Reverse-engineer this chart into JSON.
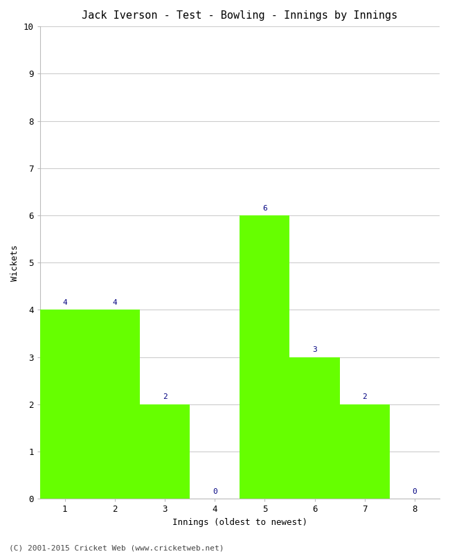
{
  "title": "Jack Iverson - Test - Bowling - Innings by Innings",
  "xlabel": "Innings (oldest to newest)",
  "ylabel": "Wickets",
  "categories": [
    1,
    2,
    3,
    4,
    5,
    6,
    7,
    8
  ],
  "values": [
    4,
    4,
    2,
    0,
    6,
    3,
    2,
    0
  ],
  "bar_color": "#66ff00",
  "label_color": "#000080",
  "ylim": [
    0,
    10
  ],
  "xlim": [
    0.5,
    8.5
  ],
  "yticks": [
    0,
    1,
    2,
    3,
    4,
    5,
    6,
    7,
    8,
    9,
    10
  ],
  "xticks": [
    1,
    2,
    3,
    4,
    5,
    6,
    7,
    8
  ],
  "title_fontsize": 11,
  "axis_label_fontsize": 9,
  "tick_fontsize": 9,
  "annotation_fontsize": 8,
  "footer": "(C) 2001-2015 Cricket Web (www.cricketweb.net)",
  "footer_fontsize": 8,
  "background_color": "#ffffff",
  "grid_color": "#cccccc"
}
